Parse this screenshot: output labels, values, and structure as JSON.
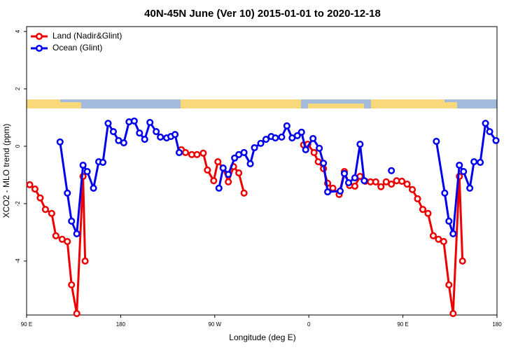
{
  "chart_data": {
    "type": "line",
    "title": "40N-45N June (Ver 10)   2015-01-01 to 2020-12-18",
    "x_label": "Longitude (deg E)",
    "y_label": "XCO2 - MLO trend (ppm)",
    "xlim": [
      90,
      540
    ],
    "xticks": [
      {
        "value": 90,
        "label": "90 E"
      },
      180,
      {
        "value": 270,
        "label": "90 W"
      },
      {
        "value": 360,
        "label": "0"
      },
      {
        "value": 450,
        "label": "90 E"
      },
      {
        "value": 540,
        "label": "180"
      }
    ],
    "ylim": [
      -5.88,
      4.17
    ],
    "yticks": [
      -4,
      -2,
      0,
      2,
      4
    ],
    "legend": "top-left",
    "series": [
      {
        "name": "Land (Nadir&Glint)",
        "color": "#ee0000",
        "x": [
          93,
          98,
          103,
          108,
          114,
          118,
          124,
          129,
          133,
          138,
          144,
          146,
          null,
          238,
          242,
          248,
          253,
          259,
          263,
          269,
          273,
          278,
          283,
          288,
          293,
          298,
          null,
          355,
          359,
          365,
          369,
          374,
          378,
          383,
          389,
          394,
          399,
          404,
          409,
          414,
          419,
          424,
          429,
          434,
          439,
          444,
          449,
          454,
          459,
          464,
          469,
          474,
          479,
          484,
          489,
          494,
          498,
          504,
          507
        ],
        "values": [
          -1.34,
          -1.49,
          -1.8,
          -2.2,
          -2.34,
          -3.12,
          -3.24,
          -3.32,
          -4.83,
          -5.83,
          -1.05,
          -4.0,
          null,
          -0.12,
          -0.22,
          -0.29,
          -0.29,
          -0.24,
          -0.83,
          -1.2,
          -0.54,
          -0.76,
          -1.24,
          -0.71,
          -0.93,
          -1.63,
          null,
          0.05,
          0.07,
          -0.22,
          -0.54,
          -0.78,
          -1.29,
          -1.46,
          -1.68,
          -0.88,
          -1.37,
          -1.39,
          -1.05,
          -1.22,
          -1.24,
          -1.24,
          -1.41,
          -1.24,
          -1.32,
          -1.2,
          -1.22,
          -1.32,
          -1.51,
          -1.83,
          -2.2,
          -2.34,
          -3.12,
          -3.24,
          -3.32,
          -4.83,
          -5.83,
          -1.05,
          -4.0
        ]
      },
      {
        "name": "Ocean (Glint)",
        "color": "#0000ee",
        "x": [
          122,
          129,
          133,
          138,
          144,
          148,
          154,
          159,
          163,
          168,
          173,
          178,
          183,
          188,
          193,
          198,
          203,
          208,
          214,
          218,
          224,
          228,
          232,
          236,
          null,
          274,
          278,
          283,
          289,
          293,
          298,
          304,
          308,
          314,
          319,
          324,
          328,
          334,
          339,
          344,
          349,
          353,
          357,
          364,
          370,
          374,
          378,
          390,
          394,
          398,
          404,
          409,
          413,
          null,
          439,
          null,
          482,
          490,
          494,
          498,
          504,
          508,
          514,
          518,
          524,
          529,
          533,
          539
        ],
        "values": [
          0.15,
          -1.63,
          -2.61,
          -3.05,
          -0.66,
          -0.88,
          -1.46,
          -0.54,
          -0.56,
          0.8,
          0.51,
          0.2,
          0.12,
          0.85,
          0.88,
          0.46,
          0.24,
          0.83,
          0.51,
          0.32,
          0.29,
          0.34,
          0.41,
          -0.22,
          null,
          -1.46,
          -0.76,
          -0.98,
          -0.41,
          -0.29,
          -0.22,
          -0.61,
          -0.05,
          0.1,
          0.24,
          0.34,
          0.29,
          0.32,
          0.71,
          0.29,
          0.37,
          0.49,
          -0.12,
          0.27,
          -0.07,
          -0.59,
          -1.59,
          -1.56,
          -0.95,
          -1.27,
          -1.1,
          0.07,
          -1.2,
          null,
          -0.85,
          null,
          0.17,
          -1.63,
          -2.61,
          -3.05,
          -0.66,
          -0.88,
          -1.46,
          -0.54,
          -0.56,
          0.8,
          0.51,
          0.2
        ]
      }
    ]
  }
}
